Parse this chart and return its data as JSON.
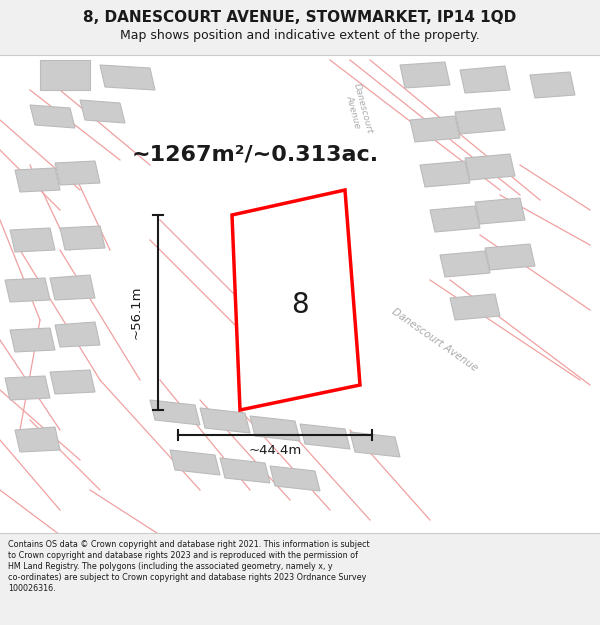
{
  "title_line1": "8, DANESCOURT AVENUE, STOWMARKET, IP14 1QD",
  "title_line2": "Map shows position and indicative extent of the property.",
  "area_label": "~1267m²/~0.313ac.",
  "number_label": "8",
  "dim_width": "~44.4m",
  "dim_height": "~56.1m",
  "footer_lines": [
    "Contains OS data © Crown copyright and database right 2021. This information is subject",
    "to Crown copyright and database rights 2023 and is reproduced with the permission of",
    "HM Land Registry. The polygons (including the associated geometry, namely x, y",
    "co-ordinates) are subject to Crown copyright and database rights 2023 Ordnance Survey",
    "100026316."
  ],
  "bg_color": "#f0f0f0",
  "map_bg": "#ffffff",
  "property_color": "#ff0000",
  "dim_line_color": "#1a1a1a",
  "text_color": "#1a1a1a",
  "light_road_line": "#f0a0a0",
  "building_color": "#cccccc",
  "building_edge": "#bbbbbb",
  "road_label_color": "#aaaaaa"
}
